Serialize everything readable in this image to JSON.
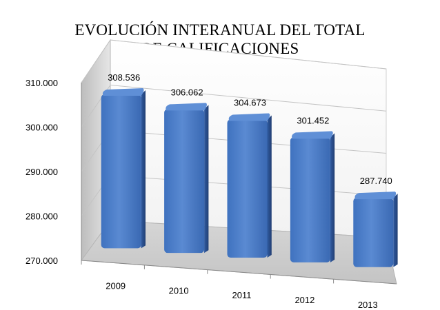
{
  "chart_data": {
    "type": "bar",
    "title": [
      "EVOLUCIÓN INTERANUAL DEL TOTAL",
      "DE CALIFICACIONES"
    ],
    "categories": [
      "2009",
      "2010",
      "2011",
      "2012",
      "2013"
    ],
    "values": [
      308536,
      306062,
      304673,
      301452,
      287740
    ],
    "data_labels": [
      "308.536",
      "306.062",
      "304.673",
      "301.452",
      "287.740"
    ],
    "y_ticks": [
      "270.000",
      "280.000",
      "290.000",
      "300.000",
      "310.000"
    ],
    "ylim": [
      270000,
      310000
    ],
    "xlabel": "",
    "ylabel": "",
    "grid": true,
    "legend": "none",
    "style": "3d-column",
    "colors": {
      "bar_front": "#4a7ec9",
      "bar_side": "#2e5597",
      "bar_top": "#5f8fd6",
      "wall": "#d9d9d9",
      "floor": "#cfcfcf",
      "grid": "#bfbfbf"
    }
  }
}
